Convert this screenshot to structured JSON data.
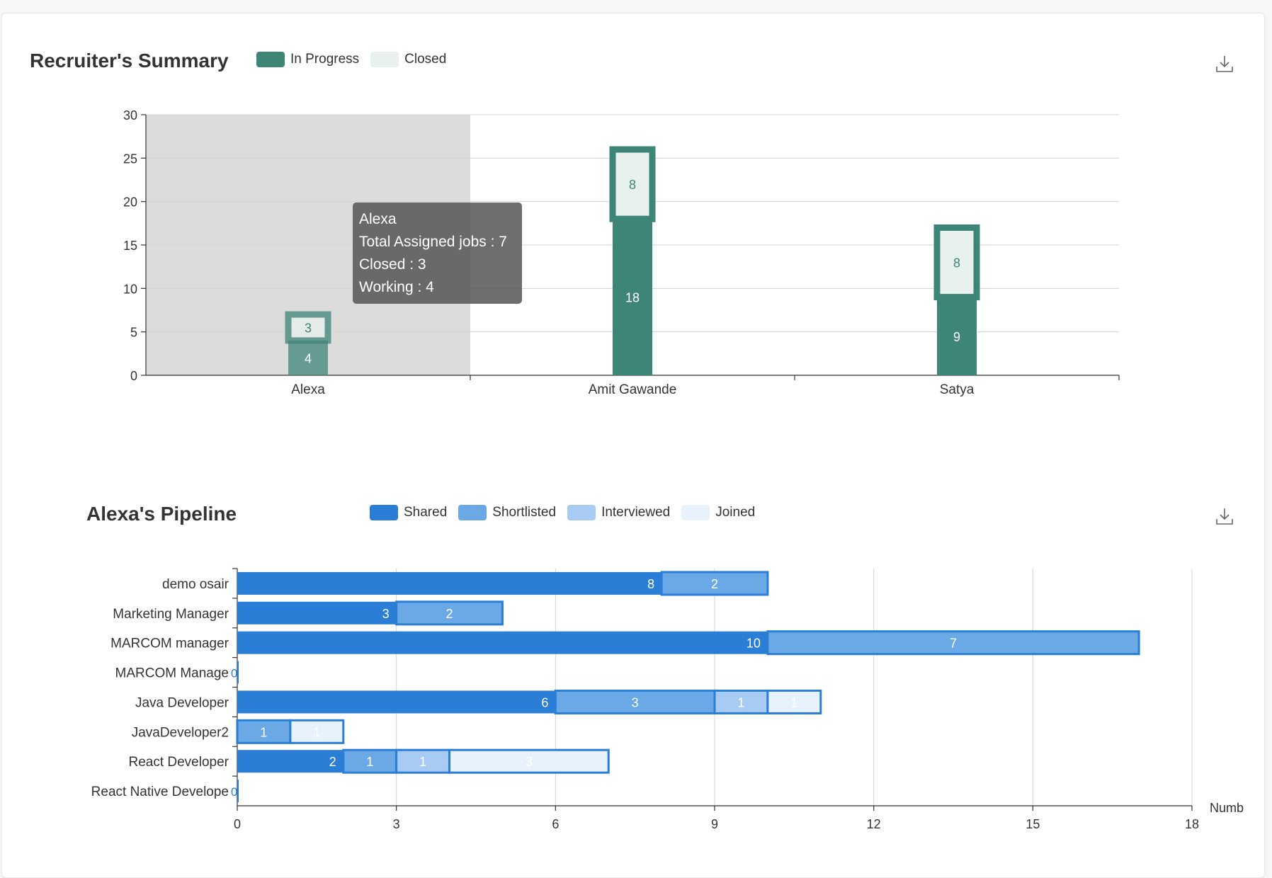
{
  "colors": {
    "in_progress": "#3d8577",
    "closed": "#e8f1ee",
    "shared": "#2a7ed6",
    "shortlisted": "#6aa9e6",
    "interviewed": "#a7cbf2",
    "joined": "#e7f2fd",
    "highlight": "#dcdcdc"
  },
  "summary": {
    "title": "Recruiter's Summary",
    "legend": [
      {
        "label": "In Progress",
        "color": "#3d8577"
      },
      {
        "label": "Closed",
        "color": "#e8f1ee"
      }
    ],
    "download_icon": "download-icon",
    "tooltip": {
      "name": "Alexa",
      "line1": "Total Assigned jobs : 7",
      "line2": "Closed : 3",
      "line3": "Working : 4"
    }
  },
  "pipeline": {
    "title": "Alexa's Pipeline",
    "legend": [
      {
        "label": "Shared",
        "color": "#2a7ed6"
      },
      {
        "label": "Shortlisted",
        "color": "#6aa9e6"
      },
      {
        "label": "Interviewed",
        "color": "#a7cbf2"
      },
      {
        "label": "Joined",
        "color": "#e7f2fd"
      }
    ],
    "download_icon": "download-icon"
  },
  "chart_data": [
    {
      "type": "bar",
      "stacked": true,
      "title": "Recruiter's Summary",
      "categories": [
        "Alexa",
        "Amit Gawande",
        "Satya"
      ],
      "series": [
        {
          "name": "In Progress",
          "values": [
            4,
            18,
            9
          ]
        },
        {
          "name": "Closed",
          "values": [
            3,
            8,
            8
          ]
        }
      ],
      "ylim": [
        0,
        30
      ],
      "yticks": [
        0,
        5,
        10,
        15,
        20,
        25,
        30
      ],
      "highlighted_category": "Alexa",
      "grid": true,
      "legend": "top-left"
    },
    {
      "type": "bar",
      "orientation": "horizontal",
      "stacked": true,
      "title": "Alexa's Pipeline",
      "categories": [
        "demo osair",
        "Marketing Manager",
        "MARCOM manager",
        "MARCOM Manage",
        "Java Developer",
        "JavaDeveloper2",
        "React Developer",
        "React Native Develope"
      ],
      "series": [
        {
          "name": "Shared",
          "values": [
            8,
            3,
            10,
            0,
            6,
            0,
            2,
            0
          ]
        },
        {
          "name": "Shortlisted",
          "values": [
            2,
            2,
            7,
            0,
            3,
            1,
            1,
            0
          ]
        },
        {
          "name": "Interviewed",
          "values": [
            0,
            0,
            0,
            0,
            1,
            0,
            1,
            0
          ]
        },
        {
          "name": "Joined",
          "values": [
            0,
            0,
            0,
            0,
            1,
            1,
            3,
            0
          ]
        }
      ],
      "xlim": [
        0,
        18
      ],
      "xticks": [
        0,
        3,
        6,
        9,
        12,
        15,
        18
      ],
      "xlabel": "Numb",
      "grid": true,
      "legend": "top"
    }
  ]
}
